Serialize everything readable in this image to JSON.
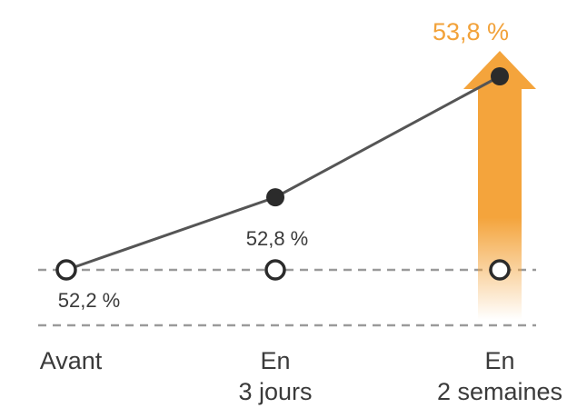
{
  "chart_data": {
    "type": "line",
    "categories": [
      "Avant",
      "En 3 jours",
      "En 2 semaines"
    ],
    "category_lines": [
      [
        "Avant"
      ],
      [
        "En",
        "3 jours"
      ],
      [
        "En",
        "2 semaines"
      ]
    ],
    "values": [
      52.2,
      52.8,
      53.8
    ],
    "value_labels": [
      "52,2 %",
      "52,8 %",
      "53,8 %"
    ],
    "baseline": 52.2,
    "highlight_index": 2,
    "grid": "dashed horizontal reference lines",
    "colors": {
      "line": "#555555",
      "point": "#2b2b2b",
      "baseline_marker": "#2b2b2b",
      "dash": "#9a9a9a",
      "arrow": "#f4a43c",
      "text": "#3a3a3a",
      "highlight_text": "#f2a23a"
    }
  }
}
